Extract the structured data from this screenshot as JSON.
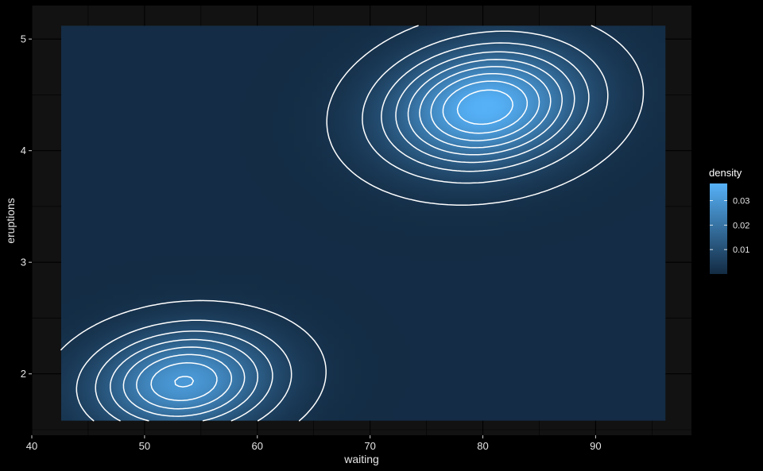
{
  "chart_data": {
    "type": "heatmap",
    "subtype": "2d-density with contour lines",
    "title": "",
    "xlabel": "waiting",
    "ylabel": "eruptions",
    "xlim": [
      40,
      98.5
    ],
    "ylim": [
      1.45,
      5.3
    ],
    "x_ticks": [
      40,
      50,
      60,
      70,
      80,
      90
    ],
    "y_ticks": [
      2,
      3,
      4,
      5
    ],
    "density_grid_extent": {
      "x": [
        42.6,
        96.2
      ],
      "y": [
        1.58,
        5.12
      ]
    },
    "legend": {
      "title": "density",
      "ticks": [
        0.01,
        0.02,
        0.03
      ],
      "range": [
        0.0,
        0.037
      ],
      "position": "right",
      "color_low": "#132b43",
      "color_high": "#56b1f7"
    },
    "peaks": [
      {
        "x": 80.2,
        "y": 4.39,
        "density": 0.037
      },
      {
        "x": 53.5,
        "y": 1.93,
        "density": 0.03
      }
    ],
    "contour_line_color": "#ffffff",
    "panel_background": "#121212",
    "grid_color": "#000000"
  }
}
